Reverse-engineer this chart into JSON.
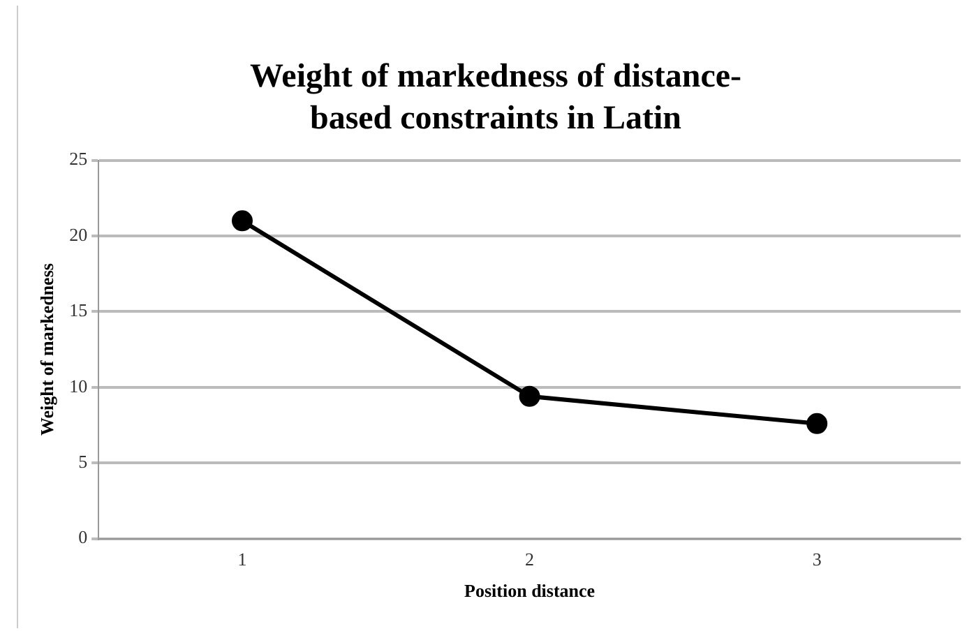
{
  "chart_data": {
    "type": "line",
    "title": "Weight of markedness of distance-based constraints in Latin",
    "xlabel": "Position distance",
    "ylabel": "Weight of markedness",
    "categories": [
      "1",
      "2",
      "3"
    ],
    "series": [
      {
        "color": "#000000",
        "values": [
          21,
          9.4,
          7.6
        ]
      }
    ],
    "ylim": [
      0,
      25
    ],
    "yticks": [
      0,
      5,
      10,
      15,
      20,
      25
    ],
    "grid": "y",
    "legend": false,
    "marker": "circle",
    "line_style": "solid"
  }
}
